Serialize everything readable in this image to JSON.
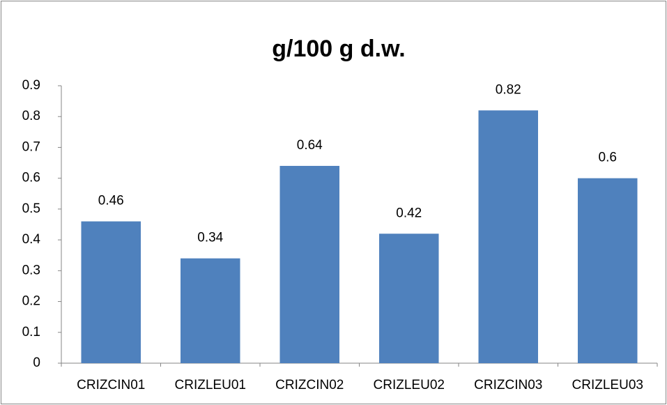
{
  "chart_data": {
    "type": "bar",
    "title": "g/100 g d.w.",
    "categories": [
      "CRIZCIN01",
      "CRIZLEU01",
      "CRIZCIN02",
      "CRIZLEU02",
      "CRIZCIN03",
      "CRIZLEU03"
    ],
    "values": [
      0.46,
      0.34,
      0.64,
      0.42,
      0.82,
      0.6
    ],
    "color": "#4f81bd",
    "ylim": [
      0,
      0.9
    ],
    "yticks": [
      0,
      0.1,
      0.2,
      0.3,
      0.4,
      0.5,
      0.6,
      0.7,
      0.8,
      0.9
    ],
    "grid": false
  }
}
